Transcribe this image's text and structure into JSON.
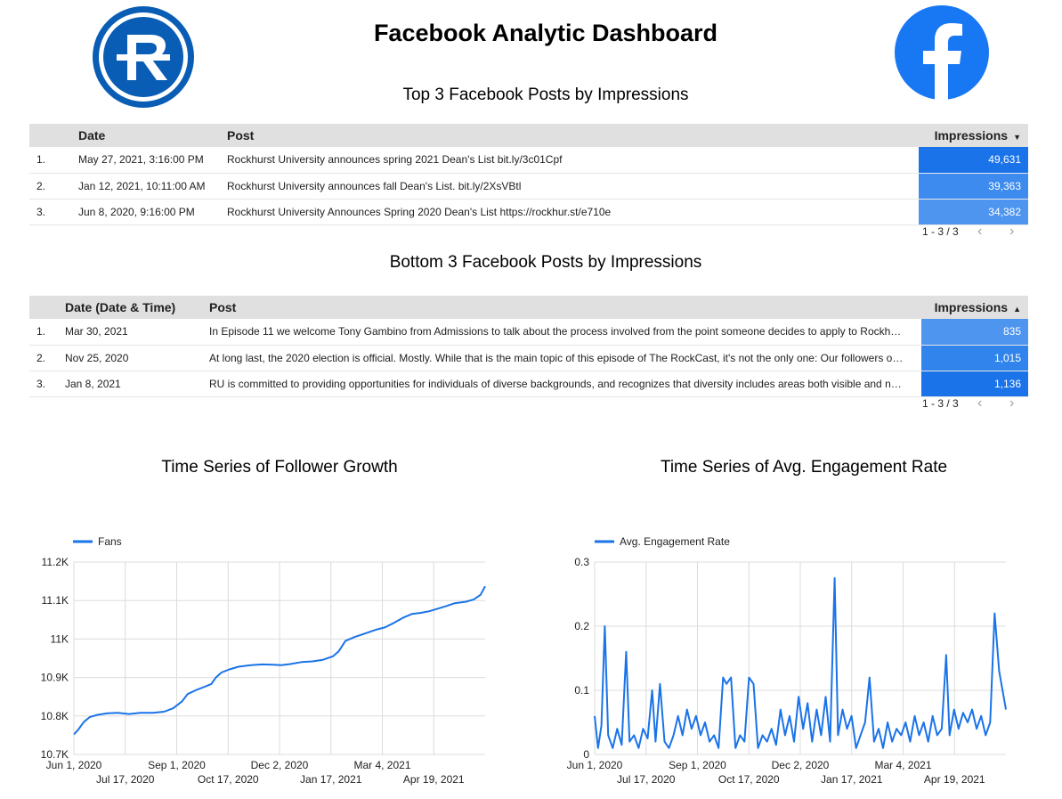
{
  "header": {
    "title": "Facebook Analytic Dashboard",
    "left_logo": "rockhurst-r-logo-icon",
    "right_logo": "facebook-logo-icon",
    "brand_color": "#0a5db4",
    "facebook_color": "#1877f2"
  },
  "top_section": {
    "subtitle": "Top 3 Facebook Posts by Impressions",
    "columns": {
      "num": "",
      "date": "Date",
      "post": "Post",
      "impressions": "Impressions"
    },
    "sort_icon": "sort-descending-icon",
    "rows": [
      {
        "num": "1.",
        "date": "May 27, 2021, 3:16:00 PM",
        "post": "Rockhurst University announces spring 2021 Dean's List bit.ly/3c01Cpf",
        "impressions": "49,631",
        "bar_color": "#1a73e8"
      },
      {
        "num": "2.",
        "date": "Jan 12, 2021, 10:11:00 AM",
        "post": "Rockhurst University announces fall Dean's List. bit.ly/2XsVBtl",
        "impressions": "39,363",
        "bar_color": "#3d8bee"
      },
      {
        "num": "3.",
        "date": "Jun 8, 2020, 9:16:00 PM",
        "post": "Rockhurst University Announces Spring 2020 Dean's List https://rockhur.st/e710e",
        "impressions": "34,382",
        "bar_color": "#4e95f0"
      }
    ],
    "pager": "1 - 3 / 3"
  },
  "bottom_section": {
    "subtitle": "Bottom 3 Facebook Posts by Impressions",
    "columns": {
      "num": "",
      "date": "Date (Date & Time)",
      "post": "Post",
      "impressions": "Impressions"
    },
    "sort_icon": "sort-ascending-icon",
    "rows": [
      {
        "num": "1.",
        "date": "Mar 30, 2021",
        "post": "In Episode 11 we welcome Tony Gambino from Admissions to talk about the process involved from the point someone decides to apply to Rockh…",
        "impressions": "835",
        "bar_color": "#4e95f0"
      },
      {
        "num": "2.",
        "date": "Nov 25, 2020",
        "post": "At long last, the 2020 election is official. Mostly. While that is the main topic of this episode of The RockCast, it's not the only one: Our followers o…",
        "impressions": "1,015",
        "bar_color": "#3084ec"
      },
      {
        "num": "3.",
        "date": "Jan 8, 2021",
        "post": "RU is committed to providing opportunities for individuals of diverse backgrounds, and recognizes that diversity includes areas both visible and n…",
        "impressions": "1,136",
        "bar_color": "#1a73e8"
      }
    ],
    "pager": "1 - 3 / 3"
  },
  "chart_data": [
    {
      "type": "line",
      "title": "Time Series of Follower Growth",
      "series": [
        {
          "name": "Fans",
          "color": "#1a73e8"
        }
      ],
      "x_ticks": [
        "Jun 1, 2020",
        "Jul 17, 2020",
        "Sep 1, 2020",
        "Oct 17, 2020",
        "Dec 2, 2020",
        "Jan 17, 2021",
        "Mar 4, 2021",
        "Apr 19, 2021"
      ],
      "y_ticks": [
        "10.7K",
        "10.8K",
        "10.9K",
        "11K",
        "11.1K",
        "11.2K"
      ],
      "ylim": [
        10700,
        11200
      ],
      "xlim": [
        "2020-06-01",
        "2021-06-01"
      ],
      "grid": true,
      "legend_position": "top-left",
      "points": [
        [
          "2020-06-01",
          10752
        ],
        [
          "2020-06-05",
          10765
        ],
        [
          "2020-06-10",
          10785
        ],
        [
          "2020-06-15",
          10797
        ],
        [
          "2020-06-22",
          10803
        ],
        [
          "2020-07-01",
          10807
        ],
        [
          "2020-07-10",
          10808
        ],
        [
          "2020-07-20",
          10805
        ],
        [
          "2020-07-30",
          10808
        ],
        [
          "2020-08-10",
          10808
        ],
        [
          "2020-08-20",
          10811
        ],
        [
          "2020-08-28",
          10820
        ],
        [
          "2020-09-05",
          10838
        ],
        [
          "2020-09-10",
          10857
        ],
        [
          "2020-09-18",
          10868
        ],
        [
          "2020-09-25",
          10876
        ],
        [
          "2020-10-01",
          10883
        ],
        [
          "2020-10-05",
          10900
        ],
        [
          "2020-10-10",
          10913
        ],
        [
          "2020-10-17",
          10921
        ],
        [
          "2020-10-25",
          10928
        ],
        [
          "2020-11-05",
          10932
        ],
        [
          "2020-11-15",
          10934
        ],
        [
          "2020-11-25",
          10933
        ],
        [
          "2020-12-02",
          10932
        ],
        [
          "2020-12-10",
          10935
        ],
        [
          "2020-12-20",
          10940
        ],
        [
          "2020-12-30",
          10942
        ],
        [
          "2021-01-08",
          10946
        ],
        [
          "2021-01-17",
          10955
        ],
        [
          "2021-01-22",
          10968
        ],
        [
          "2021-01-28",
          10995
        ],
        [
          "2021-02-05",
          11005
        ],
        [
          "2021-02-15",
          11015
        ],
        [
          "2021-02-25",
          11025
        ],
        [
          "2021-03-04",
          11030
        ],
        [
          "2021-03-12",
          11042
        ],
        [
          "2021-03-20",
          11055
        ],
        [
          "2021-03-28",
          11065
        ],
        [
          "2021-04-05",
          11068
        ],
        [
          "2021-04-12",
          11072
        ],
        [
          "2021-04-19",
          11078
        ],
        [
          "2021-04-28",
          11086
        ],
        [
          "2021-05-05",
          11093
        ],
        [
          "2021-05-15",
          11097
        ],
        [
          "2021-05-22",
          11103
        ],
        [
          "2021-05-28",
          11115
        ],
        [
          "2021-06-01",
          11137
        ]
      ]
    },
    {
      "type": "line",
      "title": "Time Series of Avg. Engagement Rate",
      "series": [
        {
          "name": "Avg. Engagement Rate",
          "color": "#1a73e8"
        }
      ],
      "x_ticks": [
        "Jun 1, 2020",
        "Jul 17, 2020",
        "Sep 1, 2020",
        "Oct 17, 2020",
        "Dec 2, 2020",
        "Jan 17, 2021",
        "Mar 4, 2021",
        "Apr 19, 2021"
      ],
      "y_ticks": [
        "0",
        "0.1",
        "0.2",
        "0.3"
      ],
      "ylim": [
        0,
        0.3
      ],
      "xlim": [
        "2020-06-01",
        "2021-06-01"
      ],
      "grid": true,
      "legend_position": "top-left",
      "points": [
        [
          "2020-06-01",
          0.06
        ],
        [
          "2020-06-04",
          0.01
        ],
        [
          "2020-06-07",
          0.045
        ],
        [
          "2020-06-10",
          0.2
        ],
        [
          "2020-06-13",
          0.03
        ],
        [
          "2020-06-17",
          0.01
        ],
        [
          "2020-06-21",
          0.04
        ],
        [
          "2020-06-25",
          0.015
        ],
        [
          "2020-06-29",
          0.16
        ],
        [
          "2020-07-02",
          0.02
        ],
        [
          "2020-07-06",
          0.03
        ],
        [
          "2020-07-10",
          0.01
        ],
        [
          "2020-07-14",
          0.04
        ],
        [
          "2020-07-18",
          0.025
        ],
        [
          "2020-07-22",
          0.1
        ],
        [
          "2020-07-25",
          0.02
        ],
        [
          "2020-07-29",
          0.11
        ],
        [
          "2020-08-02",
          0.02
        ],
        [
          "2020-08-06",
          0.01
        ],
        [
          "2020-08-10",
          0.03
        ],
        [
          "2020-08-14",
          0.06
        ],
        [
          "2020-08-18",
          0.03
        ],
        [
          "2020-08-22",
          0.07
        ],
        [
          "2020-08-26",
          0.04
        ],
        [
          "2020-08-30",
          0.06
        ],
        [
          "2020-09-03",
          0.03
        ],
        [
          "2020-09-07",
          0.05
        ],
        [
          "2020-09-11",
          0.02
        ],
        [
          "2020-09-15",
          0.03
        ],
        [
          "2020-09-19",
          0.01
        ],
        [
          "2020-09-23",
          0.12
        ],
        [
          "2020-09-26",
          0.11
        ],
        [
          "2020-09-30",
          0.12
        ],
        [
          "2020-10-04",
          0.01
        ],
        [
          "2020-10-08",
          0.03
        ],
        [
          "2020-10-12",
          0.02
        ],
        [
          "2020-10-16",
          0.12
        ],
        [
          "2020-10-20",
          0.11
        ],
        [
          "2020-10-24",
          0.01
        ],
        [
          "2020-10-28",
          0.03
        ],
        [
          "2020-11-01",
          0.02
        ],
        [
          "2020-11-05",
          0.04
        ],
        [
          "2020-11-09",
          0.015
        ],
        [
          "2020-11-13",
          0.07
        ],
        [
          "2020-11-17",
          0.03
        ],
        [
          "2020-11-21",
          0.06
        ],
        [
          "2020-11-25",
          0.02
        ],
        [
          "2020-11-29",
          0.09
        ],
        [
          "2020-12-03",
          0.04
        ],
        [
          "2020-12-07",
          0.08
        ],
        [
          "2020-12-11",
          0.02
        ],
        [
          "2020-12-15",
          0.07
        ],
        [
          "2020-12-19",
          0.03
        ],
        [
          "2020-12-23",
          0.09
        ],
        [
          "2020-12-27",
          0.02
        ],
        [
          "2020-12-31",
          0.275
        ],
        [
          "2021-01-03",
          0.03
        ],
        [
          "2021-01-07",
          0.07
        ],
        [
          "2021-01-11",
          0.04
        ],
        [
          "2021-01-15",
          0.06
        ],
        [
          "2021-01-19",
          0.01
        ],
        [
          "2021-01-23",
          0.03
        ],
        [
          "2021-01-27",
          0.05
        ],
        [
          "2021-01-31",
          0.12
        ],
        [
          "2021-02-04",
          0.02
        ],
        [
          "2021-02-08",
          0.04
        ],
        [
          "2021-02-12",
          0.01
        ],
        [
          "2021-02-16",
          0.05
        ],
        [
          "2021-02-20",
          0.02
        ],
        [
          "2021-02-24",
          0.04
        ],
        [
          "2021-02-28",
          0.03
        ],
        [
          "2021-03-04",
          0.05
        ],
        [
          "2021-03-08",
          0.02
        ],
        [
          "2021-03-12",
          0.06
        ],
        [
          "2021-03-16",
          0.03
        ],
        [
          "2021-03-20",
          0.05
        ],
        [
          "2021-03-24",
          0.02
        ],
        [
          "2021-03-28",
          0.06
        ],
        [
          "2021-04-01",
          0.03
        ],
        [
          "2021-04-05",
          0.04
        ],
        [
          "2021-04-09",
          0.155
        ],
        [
          "2021-04-12",
          0.03
        ],
        [
          "2021-04-16",
          0.07
        ],
        [
          "2021-04-20",
          0.04
        ],
        [
          "2021-04-24",
          0.065
        ],
        [
          "2021-04-28",
          0.05
        ],
        [
          "2021-05-02",
          0.07
        ],
        [
          "2021-05-06",
          0.04
        ],
        [
          "2021-05-10",
          0.06
        ],
        [
          "2021-05-14",
          0.03
        ],
        [
          "2021-05-18",
          0.05
        ],
        [
          "2021-05-22",
          0.22
        ],
        [
          "2021-05-26",
          0.13
        ],
        [
          "2021-06-01",
          0.07
        ]
      ]
    }
  ]
}
